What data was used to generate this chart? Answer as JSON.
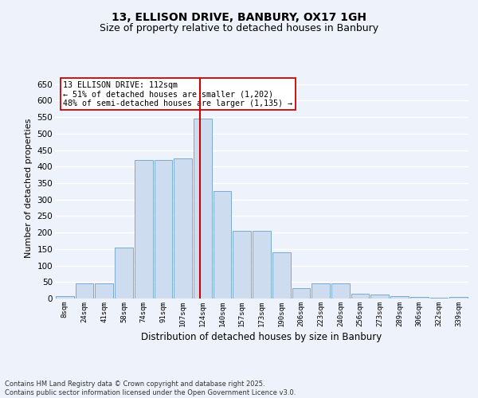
{
  "title": "13, ELLISON DRIVE, BANBURY, OX17 1GH",
  "subtitle": "Size of property relative to detached houses in Banbury",
  "xlabel": "Distribution of detached houses by size in Banbury",
  "ylabel": "Number of detached properties",
  "bar_labels": [
    "8sqm",
    "24sqm",
    "41sqm",
    "58sqm",
    "74sqm",
    "91sqm",
    "107sqm",
    "124sqm",
    "140sqm",
    "157sqm",
    "173sqm",
    "190sqm",
    "206sqm",
    "223sqm",
    "240sqm",
    "256sqm",
    "273sqm",
    "289sqm",
    "306sqm",
    "322sqm",
    "339sqm"
  ],
  "bar_values": [
    7,
    45,
    45,
    155,
    420,
    420,
    425,
    545,
    325,
    205,
    205,
    140,
    32,
    47,
    47,
    15,
    12,
    8,
    5,
    2,
    5
  ],
  "bar_color": "#cddcef",
  "bar_edge_color": "#7aaad0",
  "red_line_x": 6.85,
  "annotation_text": "13 ELLISON DRIVE: 112sqm\n← 51% of detached houses are smaller (1,202)\n48% of semi-detached houses are larger (1,135) →",
  "annotation_box_color": "#ffffff",
  "annotation_box_edge_color": "#cc0000",
  "ylim": [
    0,
    670
  ],
  "yticks": [
    0,
    50,
    100,
    150,
    200,
    250,
    300,
    350,
    400,
    450,
    500,
    550,
    600,
    650
  ],
  "footer_text": "Contains HM Land Registry data © Crown copyright and database right 2025.\nContains public sector information licensed under the Open Government Licence v3.0.",
  "background_color": "#eef2fb",
  "grid_color": "#ffffff",
  "title_fontsize": 10,
  "subtitle_fontsize": 9
}
